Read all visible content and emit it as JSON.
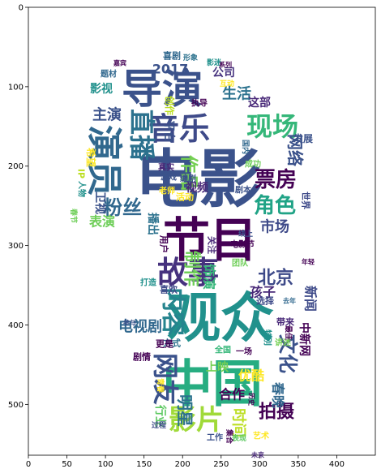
{
  "chart_data": {
    "type": "wordcloud-image",
    "title": "",
    "xlabel": "",
    "ylabel": "",
    "xlim": [
      0,
      450
    ],
    "ylim": [
      564,
      0
    ],
    "x_ticks": [
      "0",
      "50",
      "100",
      "150",
      "200",
      "250",
      "300",
      "350",
      "400"
    ],
    "y_ticks": [
      "0",
      "100",
      "200",
      "300",
      "400",
      "500"
    ],
    "colormap": [
      "#440154",
      "#3b528b",
      "#21918c",
      "#5ec962",
      "#fde725"
    ],
    "words": [
      {
        "text": "电影",
        "color": "#3b528b"
      },
      {
        "text": "观众",
        "color": "#21918c"
      },
      {
        "text": "中国",
        "color": "#27ad81"
      },
      {
        "text": "节目",
        "color": "#440154"
      },
      {
        "text": "导演",
        "color": "#3b528b"
      },
      {
        "text": "演员",
        "color": "#31688e"
      },
      {
        "text": "故事",
        "color": "#46327e"
      },
      {
        "text": "音乐",
        "color": "#3e4a89"
      },
      {
        "text": "现场",
        "color": "#35b779"
      },
      {
        "text": "直播",
        "color": "#2c728e"
      },
      {
        "text": "影片",
        "color": "#a0da39"
      },
      {
        "text": "网友",
        "color": "#3b528b"
      },
      {
        "text": "内容",
        "color": "#25848e"
      },
      {
        "text": "票房",
        "color": "#440154"
      },
      {
        "text": "文化",
        "color": "#3b528b"
      },
      {
        "text": "角色",
        "color": "#20a386"
      },
      {
        "text": "北京",
        "color": "#3e4a89"
      },
      {
        "text": "粉丝",
        "color": "#31688e"
      },
      {
        "text": "作品",
        "color": "#75d054"
      },
      {
        "text": "拍摄",
        "color": "#440154"
      },
      {
        "text": "制作",
        "color": "#6ece58"
      },
      {
        "text": "生活",
        "color": "#2c728e"
      },
      {
        "text": "网络",
        "color": "#3b528b"
      },
      {
        "text": "明星",
        "color": "#2c728e"
      },
      {
        "text": "时间",
        "color": "#bddf26"
      },
      {
        "text": "电视剧",
        "color": "#31688e"
      },
      {
        "text": "市场",
        "color": "#3e4a89"
      },
      {
        "text": "饰演",
        "color": "#35b779"
      },
      {
        "text": "孩子",
        "color": "#482878"
      },
      {
        "text": "主演",
        "color": "#3b528b"
      },
      {
        "text": "表演",
        "color": "#6ece58"
      },
      {
        "text": "合作",
        "color": "#440154"
      },
      {
        "text": "优酷",
        "color": "#fde725"
      },
      {
        "text": "春晚",
        "color": "#31688e"
      },
      {
        "text": "2017",
        "color": "#3b528b"
      },
      {
        "text": "影视",
        "color": "#21918c"
      },
      {
        "text": "公司",
        "color": "#46327e"
      },
      {
        "text": "视频",
        "color": "#482878"
      },
      {
        "text": "新闻",
        "color": "#3e4a89"
      },
      {
        "text": "播出",
        "color": "#2c728e"
      },
      {
        "text": "行业",
        "color": "#5ec962"
      },
      {
        "text": "中新网",
        "color": "#440154"
      },
      {
        "text": "平台",
        "color": "#3b528b"
      },
      {
        "text": "上映",
        "color": "#75d054"
      },
      {
        "text": "这部",
        "color": "#482878"
      },
      {
        "text": "创作",
        "color": "#bddf26"
      },
      {
        "text": "卫视",
        "color": "#3b528b"
      },
      {
        "text": "希望",
        "color": "#fde725"
      },
      {
        "text": "电影节",
        "color": "#440154"
      },
      {
        "text": "世界",
        "color": "#3e4a89"
      },
      {
        "text": "发展",
        "color": "#3b528b"
      },
      {
        "text": "喜剧",
        "color": "#31688e"
      },
      {
        "text": "活动",
        "color": "#fde725"
      },
      {
        "text": "剧情",
        "color": "#440154"
      },
      {
        "text": "方式",
        "color": "#2c728e"
      },
      {
        "text": "人物",
        "color": "#21918c"
      },
      {
        "text": "喜欢",
        "color": "#3e4a89"
      },
      {
        "text": "用户",
        "color": "#440154"
      },
      {
        "text": "成功",
        "color": "#6ece58"
      },
      {
        "text": "剧本",
        "color": "#3b528b"
      },
      {
        "text": "老师",
        "color": "#fde725"
      },
      {
        "text": "执导",
        "color": "#440154"
      },
      {
        "text": "题材",
        "color": "#31688e"
      },
      {
        "text": "游戏",
        "color": "#3b528b"
      },
      {
        "text": "真实",
        "color": "#482878"
      },
      {
        "text": "编剧",
        "color": "#3b528b"
      },
      {
        "text": "带来",
        "color": "#482878"
      },
      {
        "text": "更是",
        "color": "#440154"
      },
      {
        "text": "选择",
        "color": "#3e4a89"
      },
      {
        "text": "全国",
        "color": "#35b779"
      },
      {
        "text": "一场",
        "color": "#440154"
      },
      {
        "text": "特别",
        "color": "#21918c"
      },
      {
        "text": "工作",
        "color": "#3b528b"
      },
      {
        "text": "艺术",
        "color": "#fde725"
      },
      {
        "text": "关注",
        "color": "#482878"
      },
      {
        "text": "团队",
        "color": "#6ece58"
      },
      {
        "text": "打造",
        "color": "#21918c"
      },
      {
        "text": "过程",
        "color": "#3e4a89"
      },
      {
        "text": "表现",
        "color": "#5ec962"
      },
      {
        "text": "集合",
        "color": "#440154"
      },
      {
        "text": "IP",
        "color": "#bddf26"
      },
      {
        "text": "互动",
        "color": "#fde725"
      },
      {
        "text": "国内",
        "color": "#31688e"
      },
      {
        "text": "形象",
        "color": "#2c728e"
      },
      {
        "text": "影迷",
        "color": "#21918c"
      },
      {
        "text": "系列",
        "color": "#440154"
      },
      {
        "text": "春节",
        "color": "#6ece58"
      },
      {
        "text": "青春",
        "color": "#fde725"
      },
      {
        "text": "参与",
        "color": "#3b528b"
      },
      {
        "text": "讲述",
        "color": "#75d054"
      },
      {
        "text": "历史",
        "color": "#440154"
      },
      {
        "text": "未来",
        "color": "#482878"
      },
      {
        "text": "嘉宾",
        "color": "#440154"
      },
      {
        "text": "去年",
        "color": "#31688e"
      },
      {
        "text": "最佳",
        "color": "#440154"
      },
      {
        "text": "线上",
        "color": "#3b528b"
      },
      {
        "text": "年轻",
        "color": "#440154"
      }
    ]
  }
}
